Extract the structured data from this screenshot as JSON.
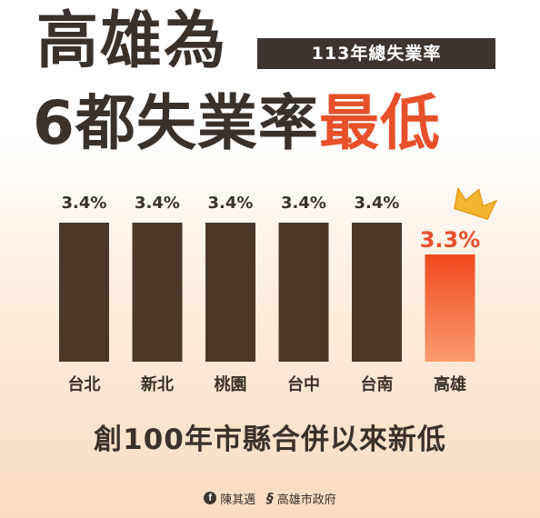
{
  "headline": {
    "line1": "高雄為",
    "line2_prefix": "6都失業率",
    "line2_highlight": "最低",
    "badge": "113年總失業率"
  },
  "chart_data": {
    "type": "bar",
    "categories": [
      "台北",
      "新北",
      "桃園",
      "台中",
      "台南",
      "高雄"
    ],
    "values": [
      3.4,
      3.4,
      3.4,
      3.4,
      3.4,
      3.3
    ],
    "value_labels": [
      "3.4%",
      "3.4%",
      "3.4%",
      "3.4%",
      "3.4%",
      "3.3%"
    ],
    "highlight_index": 5,
    "ylim": [
      3.0,
      3.4
    ],
    "colors": {
      "bar": "#4b3829",
      "highlight_top": "#f04a1e",
      "highlight_bottom": "#fb9c6e",
      "label": "#3b312b",
      "highlight_label": "#e8502a",
      "crown": "#f5b62f"
    },
    "title": "",
    "xlabel": "",
    "ylabel": ""
  },
  "footer": {
    "tagline": "創100年市縣合併以來新低",
    "credit_person": "陳其邁",
    "credit_org": "高雄市政府",
    "facebook_icon": "facebook-icon",
    "city_logo_icon": "kaohsiung-city-logo-icon"
  }
}
